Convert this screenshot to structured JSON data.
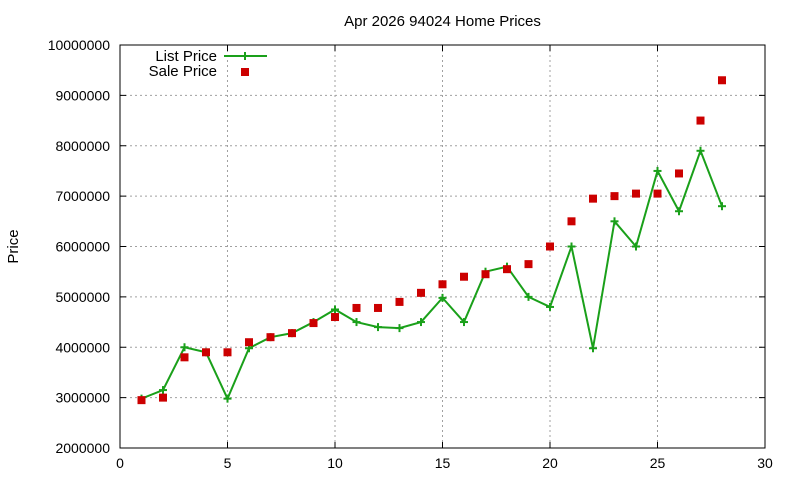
{
  "chart_data": {
    "type": "line",
    "title": "Apr 2026 94024 Home Prices",
    "xlabel": "",
    "ylabel": "Price",
    "xlim": [
      0,
      30
    ],
    "ylim": [
      2000000,
      10000000
    ],
    "xticks": [
      0,
      5,
      10,
      15,
      20,
      25,
      30
    ],
    "yticks": [
      2000000,
      3000000,
      4000000,
      5000000,
      6000000,
      7000000,
      8000000,
      9000000,
      10000000
    ],
    "grid": true,
    "legend_position": "top-left",
    "series": [
      {
        "name": "List Price",
        "style": "line-with-plus-markers",
        "color": "#1aa01a",
        "x": [
          1,
          2,
          3,
          4,
          5,
          6,
          7,
          8,
          9,
          10,
          11,
          12,
          13,
          14,
          15,
          16,
          17,
          18,
          19,
          20,
          21,
          22,
          23,
          24,
          25,
          26,
          27,
          28
        ],
        "values": [
          2980000,
          3150000,
          4000000,
          3900000,
          2980000,
          3980000,
          4200000,
          4280000,
          4500000,
          4750000,
          4500000,
          4400000,
          4380000,
          4500000,
          4980000,
          4500000,
          5500000,
          5600000,
          5000000,
          4800000,
          6000000,
          3980000,
          6500000,
          6000000,
          7500000,
          6700000,
          7900000,
          6800000
        ]
      },
      {
        "name": "Sale Price",
        "style": "square-markers",
        "color": "#cc0000",
        "x": [
          1,
          2,
          3,
          4,
          5,
          6,
          7,
          8,
          9,
          10,
          11,
          12,
          13,
          14,
          15,
          16,
          17,
          18,
          19,
          20,
          21,
          22,
          23,
          24,
          25,
          26,
          27,
          28
        ],
        "values": [
          2950000,
          3000000,
          3800000,
          3900000,
          3900000,
          4100000,
          4200000,
          4280000,
          4480000,
          4600000,
          4780000,
          4780000,
          4900000,
          5080000,
          5250000,
          5400000,
          5450000,
          5550000,
          5650000,
          6000000,
          6500000,
          6950000,
          7000000,
          7050000,
          7050000,
          7450000,
          8500000,
          9300000
        ]
      }
    ]
  }
}
